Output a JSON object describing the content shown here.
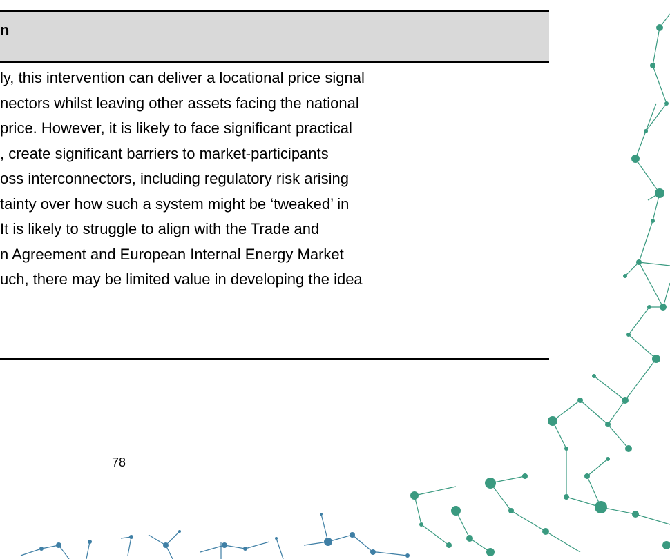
{
  "header": {
    "title": "n"
  },
  "body": {
    "lines": [
      "ly, this intervention can deliver a locational price signal",
      "nectors whilst leaving other assets facing the national",
      "price. However, it is likely to face significant practical",
      ", create significant barriers to market-participants",
      "oss interconnectors, including regulatory risk arising",
      "tainty over how such a system might be ‘tweaked’ in",
      "It is likely to struggle to align with the Trade and",
      "n Agreement and European Internal Energy Market",
      "uch, there may be limited value in developing the idea"
    ]
  },
  "footer": {
    "page_number": "78"
  }
}
